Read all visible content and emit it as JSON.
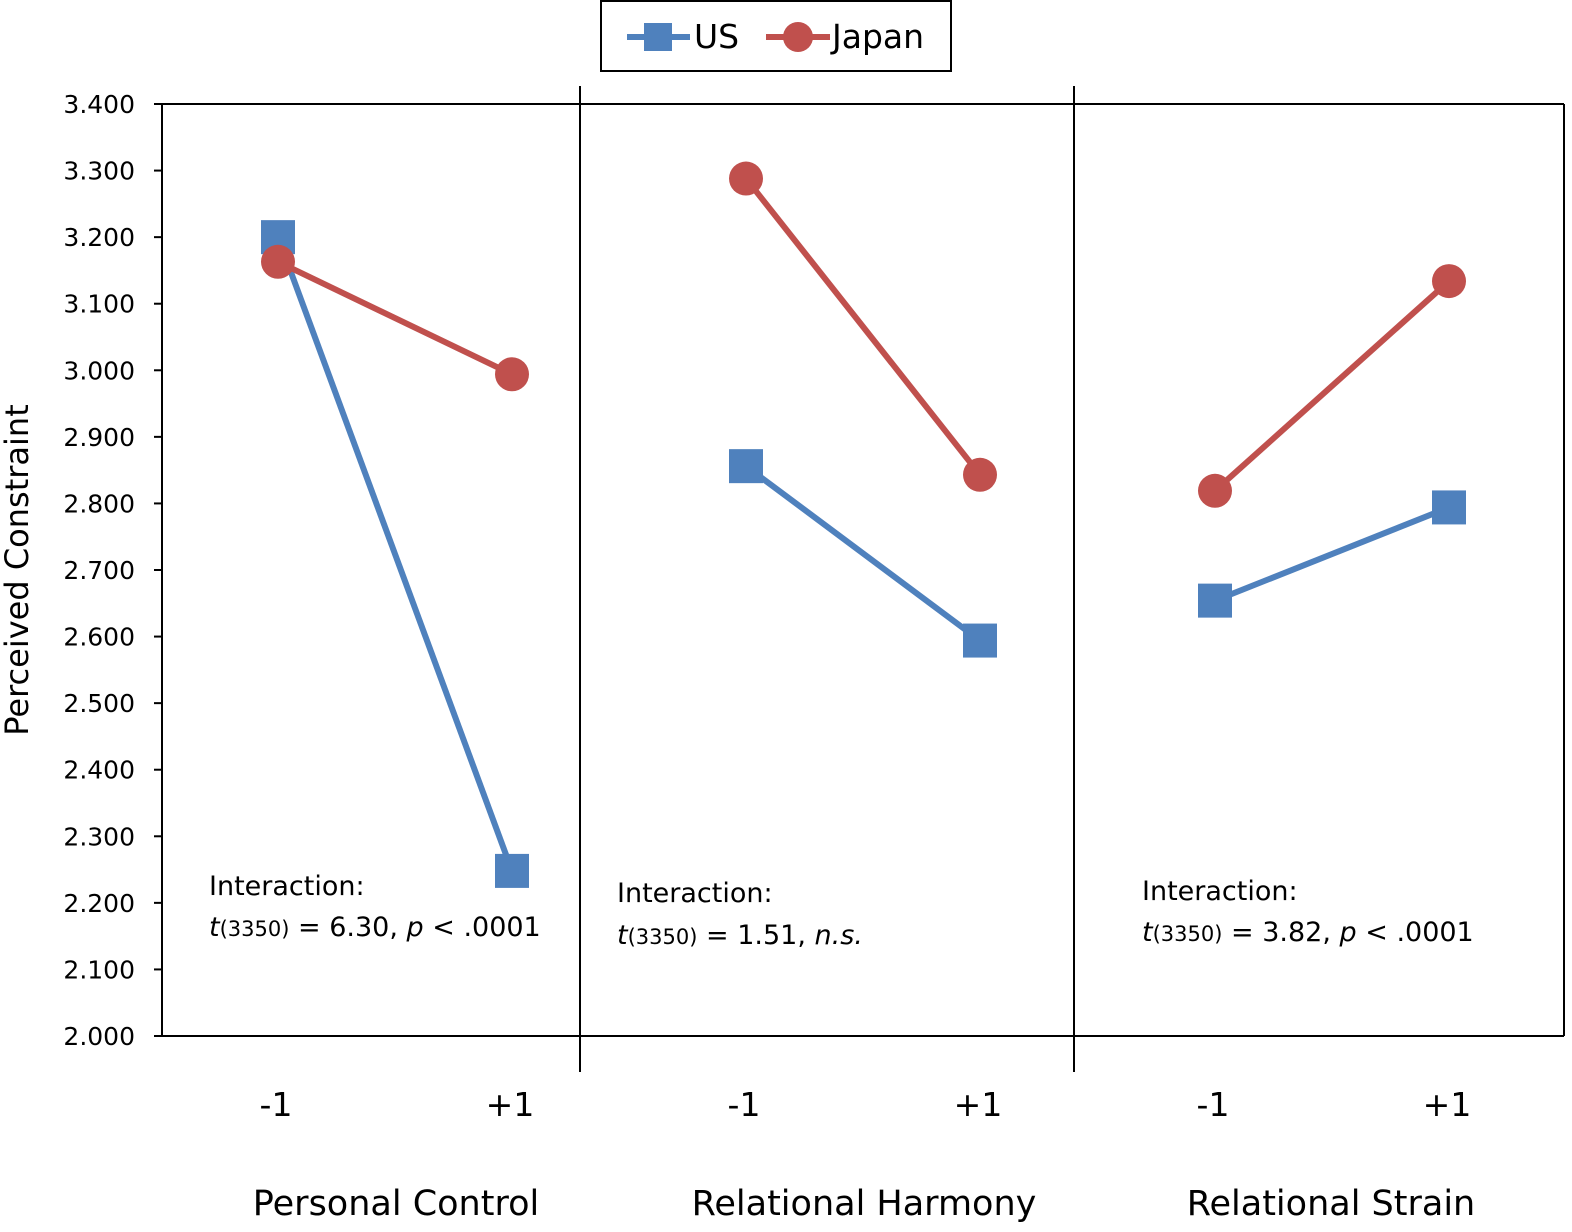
{
  "chart_data": {
    "type": "line",
    "ylabel": "Perceived Constraint",
    "ylim": [
      2.0,
      3.4
    ],
    "yticks": [
      "2.000",
      "2.100",
      "2.200",
      "2.300",
      "2.400",
      "2.500",
      "2.600",
      "2.700",
      "2.800",
      "2.900",
      "3.000",
      "3.100",
      "3.200",
      "3.300",
      "3.400"
    ],
    "x_categories": [
      "-1",
      "+1"
    ],
    "legend": {
      "placement": "top-center",
      "entries": [
        {
          "name": "US",
          "marker": "square",
          "color": "#4f81bd"
        },
        {
          "name": "Japan",
          "marker": "circle",
          "color": "#c0504d"
        }
      ]
    },
    "panels": [
      {
        "label": "Personal Control",
        "series": [
          {
            "name": "US",
            "values": [
              3.2,
              2.248
            ]
          },
          {
            "name": "Japan",
            "values": [
              3.163,
              2.994
            ]
          }
        ],
        "annotation": {
          "line1": "Interaction:",
          "t": "t",
          "df": "(3350)",
          "stat": " = 6.30, ",
          "sig_italic": "p",
          "sig_rest": " < .0001"
        }
      },
      {
        "label": "Relational Harmony",
        "series": [
          {
            "name": "US",
            "values": [
              2.856,
              2.594
            ]
          },
          {
            "name": "Japan",
            "values": [
              3.288,
              2.843
            ]
          }
        ],
        "annotation": {
          "line1": "Interaction:",
          "t": "t",
          "df": "(3350)",
          "stat": " = 1.51, ",
          "sig_italic": "n.s.",
          "sig_rest": ""
        }
      },
      {
        "label": "Relational Strain",
        "series": [
          {
            "name": "US",
            "values": [
              2.654,
              2.794
            ]
          },
          {
            "name": "Japan",
            "values": [
              2.819,
              3.134
            ]
          }
        ],
        "annotation": {
          "line1": "Interaction:",
          "t": "t",
          "df": "(3350)",
          "stat": " = 3.82, ",
          "sig_italic": "p",
          "sig_rest": " < .0001"
        }
      }
    ]
  }
}
